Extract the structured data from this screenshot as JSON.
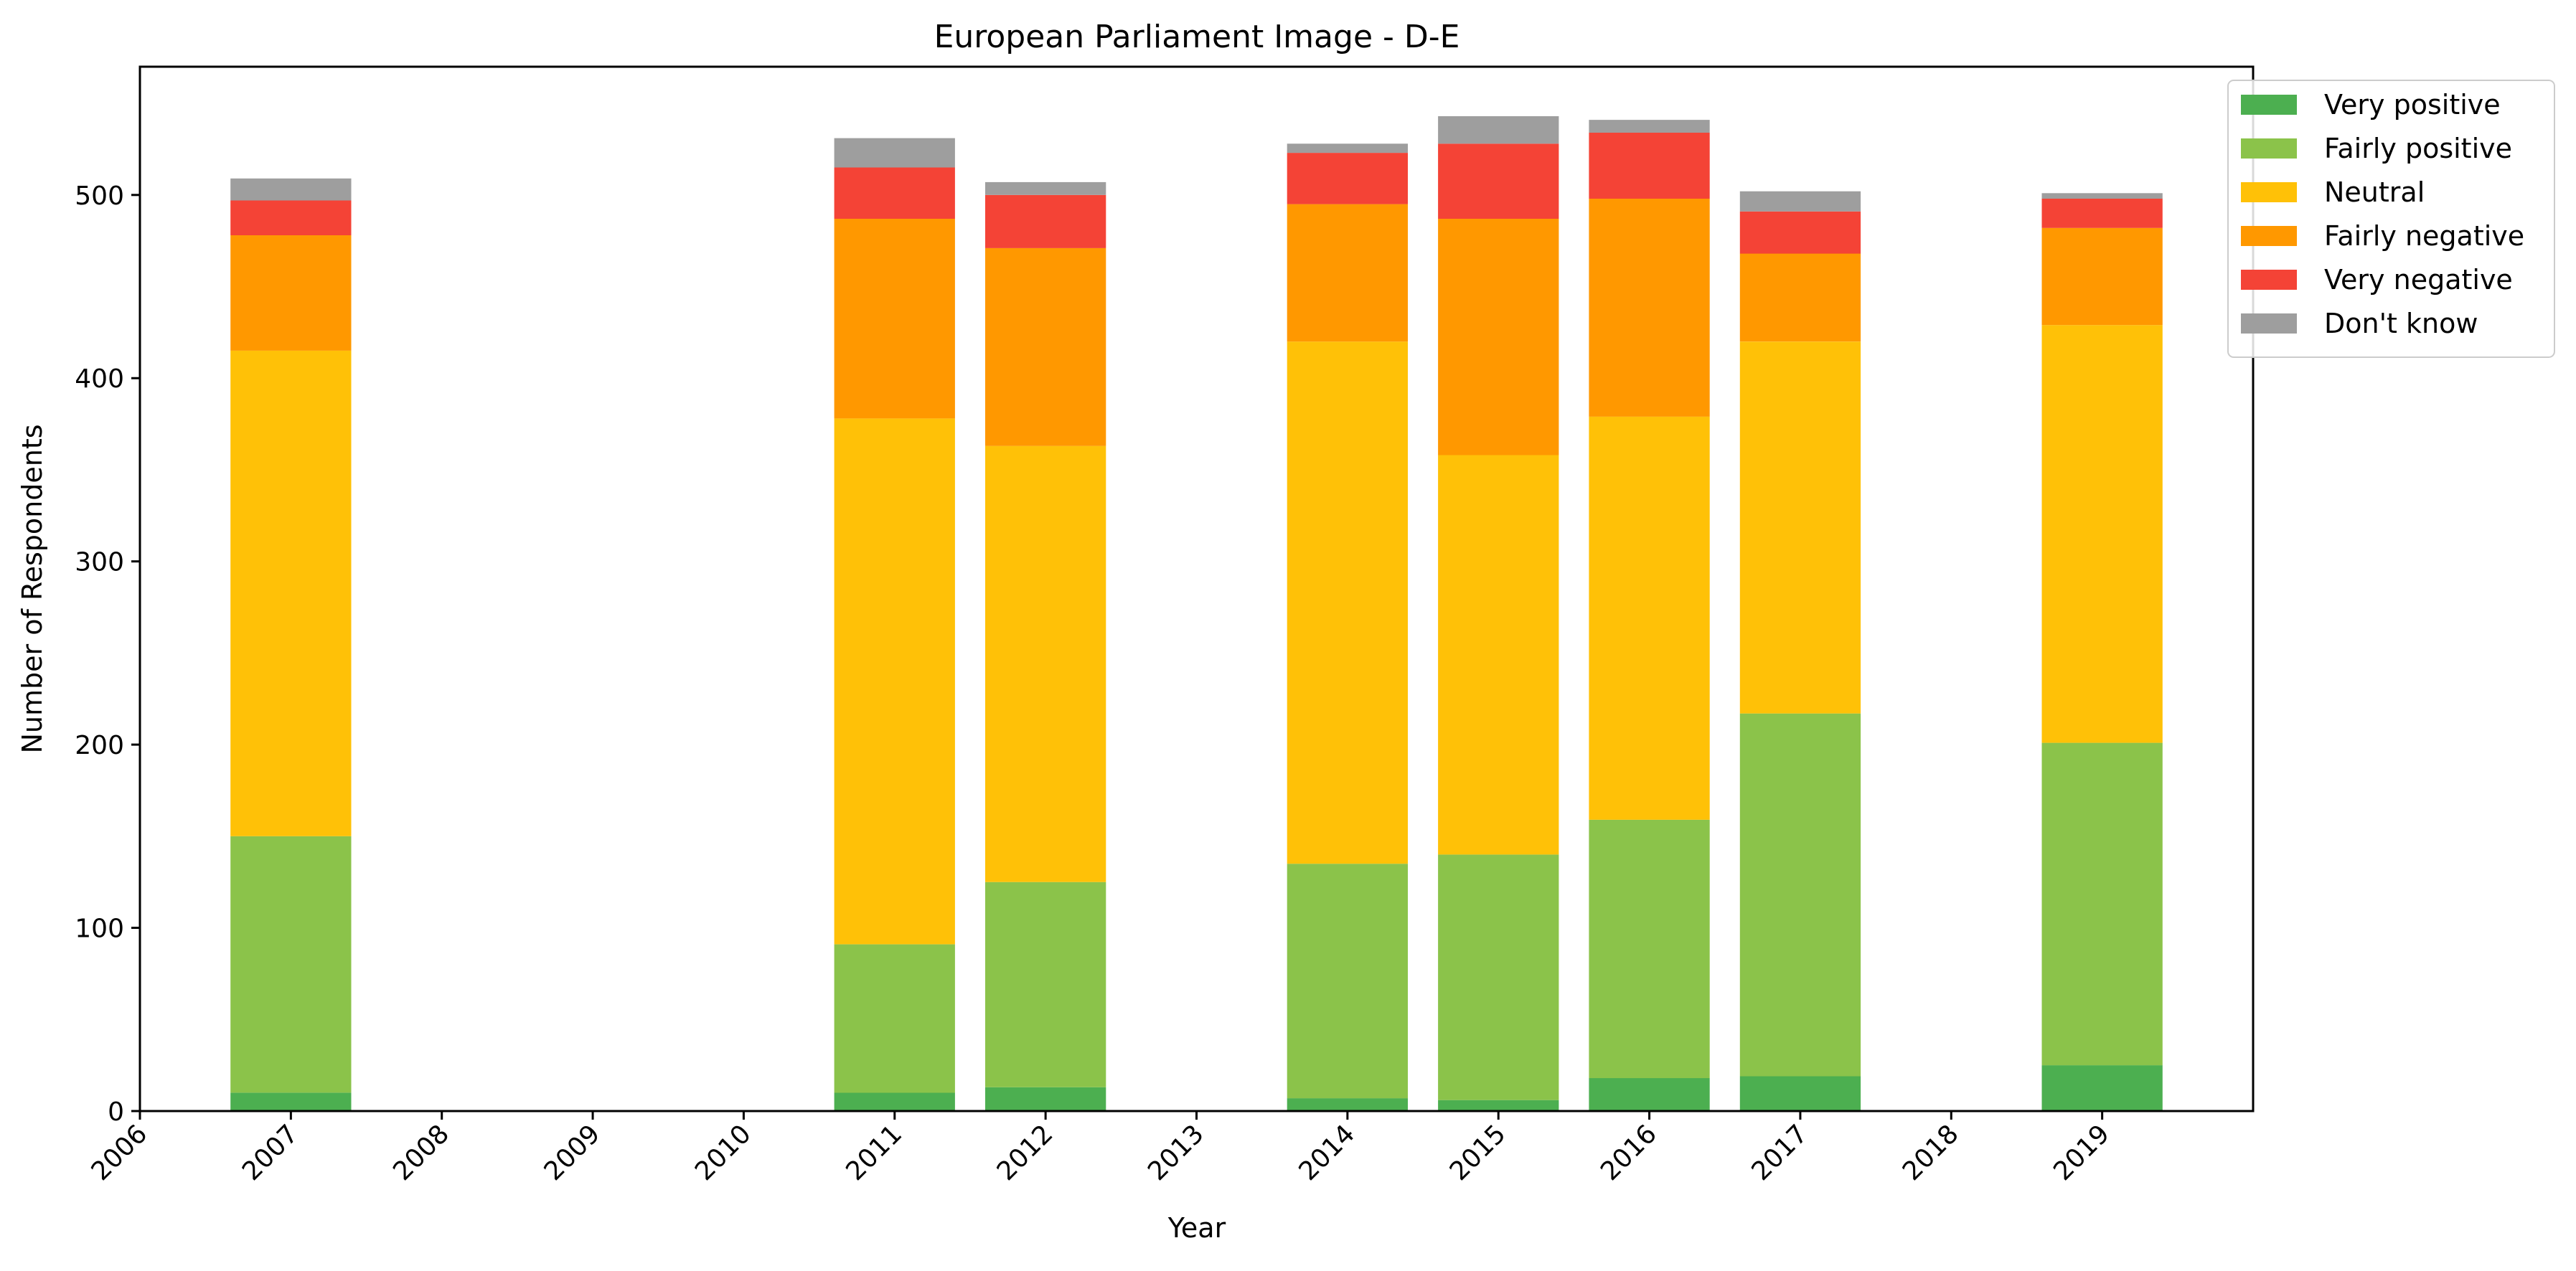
{
  "chart_data": {
    "type": "bar",
    "stacked": true,
    "title": "European Parliament Image - D-E",
    "xlabel": "Year",
    "ylabel": "Number of Respondents",
    "x_ticks": [
      "2006",
      "2007",
      "2008",
      "2009",
      "2010",
      "2011",
      "2012",
      "2013",
      "2014",
      "2015",
      "2016",
      "2017",
      "2018",
      "2019"
    ],
    "y_ticks": [
      "0",
      "100",
      "200",
      "300",
      "400",
      "500"
    ],
    "xlim": [
      2006,
      2020
    ],
    "ylim": [
      0,
      570
    ],
    "legend_position": "top-right (outside plot)",
    "grid": false,
    "categories": [
      "2007",
      "2011",
      "2012",
      "2014",
      "2015",
      "2016",
      "2017",
      "2019"
    ],
    "series": [
      {
        "name": "Very positive",
        "color": "#4caf50",
        "values": [
          10,
          10,
          13,
          7,
          6,
          18,
          19,
          25
        ]
      },
      {
        "name": "Fairly positive",
        "color": "#8bc34a",
        "values": [
          140,
          81,
          112,
          128,
          134,
          141,
          198,
          176
        ]
      },
      {
        "name": "Neutral",
        "color": "#ffc107",
        "values": [
          265,
          287,
          238,
          285,
          218,
          220,
          203,
          228
        ]
      },
      {
        "name": "Fairly negative",
        "color": "#ff9800",
        "values": [
          63,
          109,
          108,
          75,
          129,
          119,
          48,
          53
        ]
      },
      {
        "name": "Very negative",
        "color": "#f44336",
        "values": [
          19,
          28,
          29,
          28,
          41,
          36,
          23,
          16
        ]
      },
      {
        "name": "Don't know",
        "color": "#9e9e9e",
        "values": [
          12,
          16,
          7,
          5,
          15,
          7,
          11,
          3
        ]
      }
    ]
  }
}
